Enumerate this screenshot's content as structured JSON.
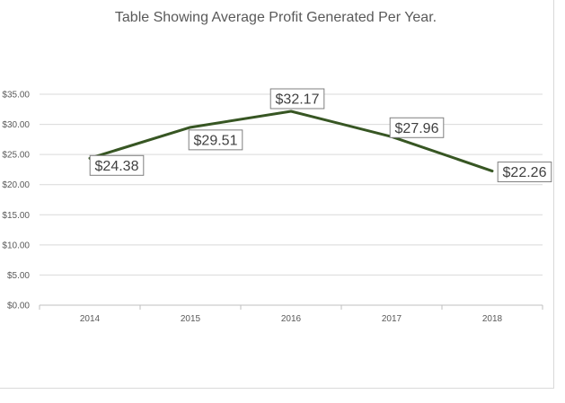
{
  "chart_data": {
    "type": "line",
    "title": "Table Showing Average Profit Generated Per Year.",
    "xlabel": "",
    "ylabel": "",
    "categories": [
      "2014",
      "2015",
      "2016",
      "2017",
      "2018"
    ],
    "series": [
      {
        "values": [
          24.38,
          29.51,
          32.17,
          27.96,
          22.26
        ],
        "data_labels": [
          "$24.38",
          "$29.51",
          "$32.17",
          "$27.96",
          "$22.26"
        ]
      }
    ],
    "ylim": [
      0,
      35
    ],
    "y_ticks": [
      {
        "value": 35,
        "label": "$35.00"
      },
      {
        "value": 30,
        "label": "$30.00"
      },
      {
        "value": 25,
        "label": "$25.00"
      },
      {
        "value": 20,
        "label": "$20.00"
      },
      {
        "value": 15,
        "label": "$15.00"
      },
      {
        "value": 10,
        "label": "$10.00"
      },
      {
        "value": 5,
        "label": "$5.00"
      },
      {
        "value": 0,
        "label": "$0.00"
      }
    ],
    "grid": true,
    "legend": "none",
    "line_color": "#375623",
    "grid_color": "#d9d9d9",
    "text_color": "#595959"
  }
}
